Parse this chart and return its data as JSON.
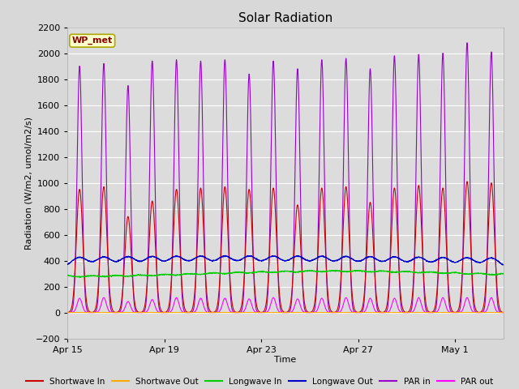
{
  "title": "Solar Radiation",
  "xlabel": "Time",
  "ylabel": "Radiation (W/m2, umol/m2/s)",
  "ylim": [
    -200,
    2200
  ],
  "yticks": [
    -200,
    0,
    200,
    400,
    600,
    800,
    1000,
    1200,
    1400,
    1600,
    1800,
    2000,
    2200
  ],
  "fig_bg": "#d8d8d8",
  "plot_bg": "#dcdcdc",
  "station_label": "WP_met",
  "x_tick_labels": [
    "Apr 15",
    "Apr 19",
    "Apr 23",
    "Apr 27",
    "May 1"
  ],
  "x_tick_positions": [
    0,
    4,
    8,
    12,
    16
  ],
  "n_days": 18,
  "series": {
    "shortwave_in": {
      "color": "#cc0000",
      "lw": 0.8,
      "label": "Shortwave In"
    },
    "shortwave_out": {
      "color": "#ffaa00",
      "lw": 0.8,
      "label": "Shortwave Out"
    },
    "longwave_in": {
      "color": "#00cc00",
      "lw": 0.8,
      "label": "Longwave In"
    },
    "longwave_out": {
      "color": "#0000cc",
      "lw": 0.8,
      "label": "Longwave Out"
    },
    "par_in": {
      "color": "#9900cc",
      "lw": 0.8,
      "label": "PAR in"
    },
    "par_out": {
      "color": "#ff00ff",
      "lw": 0.8,
      "label": "PAR out"
    }
  },
  "shortwave_peaks": [
    950,
    970,
    740,
    860,
    950,
    960,
    970,
    950,
    960,
    830,
    960,
    970,
    850,
    960,
    980,
    960,
    1010,
    1000
  ],
  "par_peaks": [
    1900,
    1920,
    1750,
    1940,
    1950,
    1940,
    1950,
    1840,
    1940,
    1880,
    1950,
    1960,
    1880,
    1980,
    1990,
    2000,
    2080,
    2010
  ],
  "par_out_peaks": [
    110,
    115,
    85,
    100,
    115,
    110,
    110,
    105,
    115,
    105,
    110,
    115,
    110,
    110,
    115,
    115,
    115,
    115
  ],
  "lw_in_base": 310,
  "lw_out_base": 355,
  "lw_in_amplitude": 30,
  "lw_out_bump": 70
}
